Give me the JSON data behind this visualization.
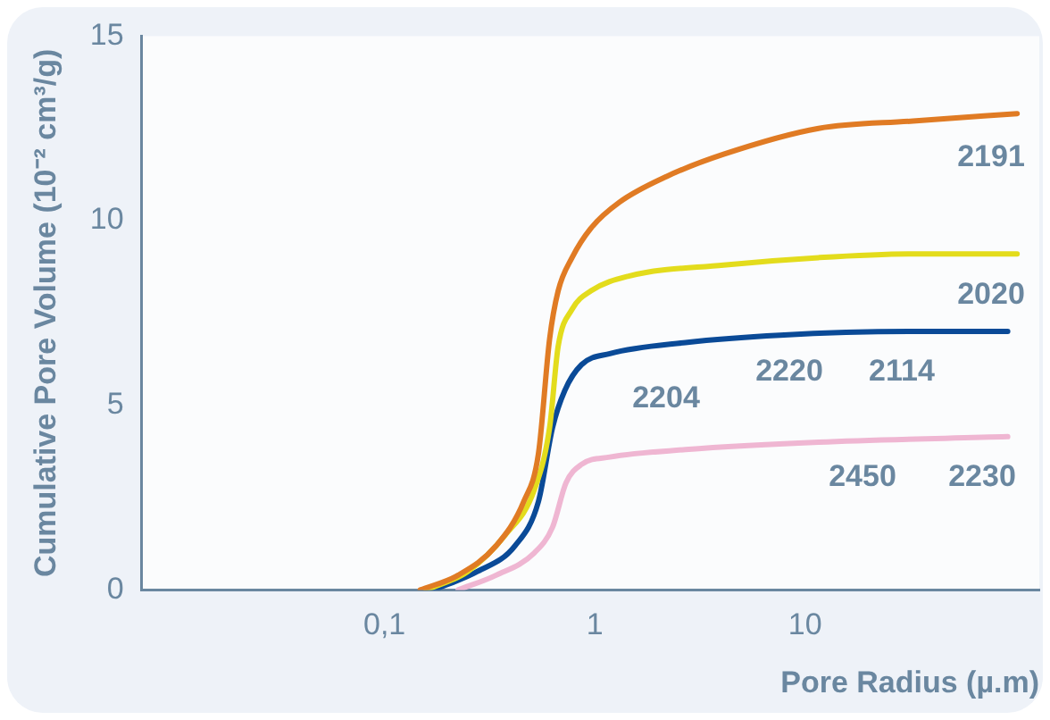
{
  "chart_data": {
    "type": "line",
    "xlabel": "Pore Radius (µ.m)",
    "ylabel": "Cumulative Pore Volume (10⁻² cm³/g)",
    "log": "x",
    "xlim": [
      0.007,
      130
    ],
    "xticks": [
      {
        "value": 0.1,
        "label": "0,1"
      },
      1,
      10
    ],
    "ylim": [
      0,
      15
    ],
    "yticks": [
      0,
      5,
      10,
      15
    ],
    "grid": false,
    "legend": false,
    "marker": "none",
    "line_style": "solid",
    "series": [
      {
        "color": "#e07b24",
        "x": [
          0.148,
          0.224,
          0.34,
          0.46,
          0.54,
          0.61,
          0.67,
          0.78,
          0.96,
          1.31,
          2.2,
          4.1,
          11.6,
          32.6,
          102
        ],
        "values": [
          0,
          0.4,
          1.2,
          2.4,
          3.7,
          6.8,
          8.1,
          9.0,
          9.8,
          10.5,
          11.2,
          11.8,
          12.5,
          12.7,
          12.9
        ]
      },
      {
        "color": "#e3dc1c",
        "x": [
          0.158,
          0.249,
          0.377,
          0.515,
          0.61,
          0.67,
          0.78,
          0.96,
          1.45,
          4.1,
          11.6,
          32.6,
          102
        ],
        "values": [
          0,
          0.5,
          1.5,
          2.7,
          4.4,
          6.6,
          7.6,
          8.1,
          8.5,
          8.8,
          9.0,
          9.1,
          9.1
        ]
      },
      {
        "color": "#0a4a97",
        "x": [
          0.171,
          0.277,
          0.418,
          0.54,
          0.63,
          0.72,
          0.865,
          1.18,
          2.7,
          7.6,
          32.6,
          92
        ],
        "values": [
          0,
          0.5,
          1.2,
          2.4,
          4.4,
          5.4,
          6.1,
          6.4,
          6.7,
          6.9,
          7.0,
          7.0
        ]
      },
      {
        "color": "#efb6d2",
        "x": [
          0.224,
          0.34,
          0.515,
          0.63,
          0.73,
          0.865,
          1.18,
          2.7,
          11.6,
          92
        ],
        "values": [
          0,
          0.4,
          1.0,
          1.7,
          2.9,
          3.4,
          3.6,
          3.8,
          4.0,
          4.15
        ]
      }
    ],
    "annotations": [
      "2191",
      "2020",
      "2204",
      "2220",
      "2114",
      "2450",
      "2230"
    ]
  }
}
